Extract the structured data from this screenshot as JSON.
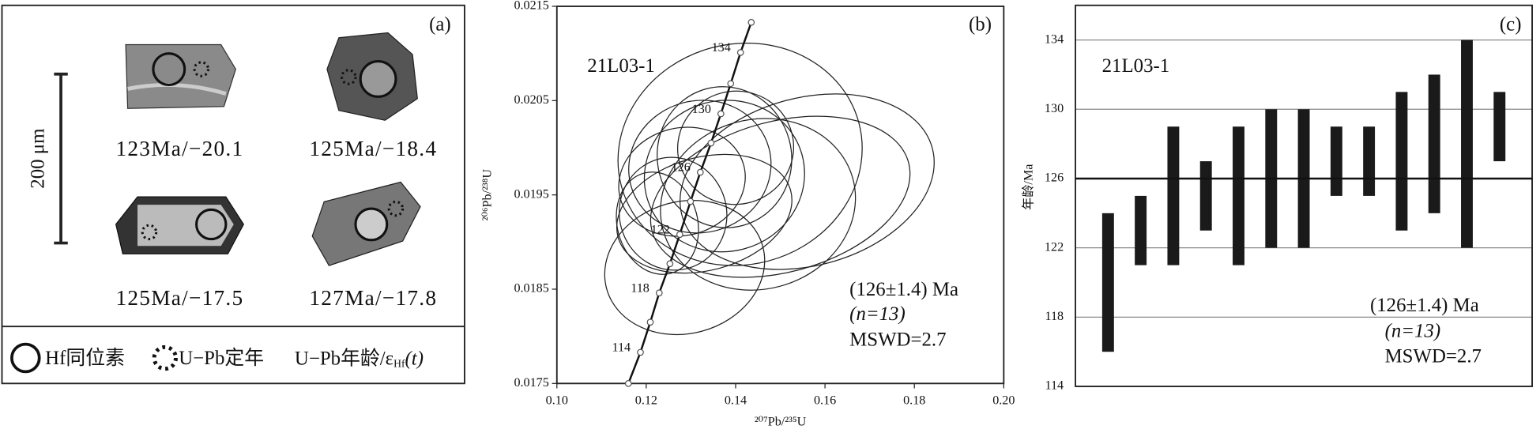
{
  "panel_a": {
    "label": "(a)",
    "scale": "200 μm",
    "grains": [
      "123Ma/−20.1",
      "125Ma/−18.4",
      "125Ma/−17.5",
      "127Ma/−17.8"
    ],
    "legend": {
      "hf": "Hf同位素",
      "upb": "U−Pb定年",
      "age": "U−Pb年龄/ε",
      "age_sub": "Hf",
      "age_tail": "(t)"
    }
  },
  "chart_data": [
    {
      "type": "concordia",
      "label": "(b)",
      "sample": "21L03-1",
      "result": "(126±1.4) Ma",
      "n_text": "(n=13)",
      "mswd": "MSWD=2.7",
      "x_label": "²⁰⁷Pb/²³⁵U",
      "y_label": "²⁰⁶Pb/²³⁸U",
      "xlim": [
        0.1,
        0.2
      ],
      "xticks": [
        {
          "value": 0.1,
          "label": "0.10"
        },
        {
          "value": 0.12,
          "label": "0.12"
        },
        {
          "value": 0.14,
          "label": "0.14"
        },
        {
          "value": 0.16,
          "label": "0.16"
        },
        {
          "value": 0.18,
          "label": "0.18"
        },
        {
          "value": 0.2,
          "label": "0.20"
        }
      ],
      "ylim": [
        0.0175,
        0.0215
      ],
      "yticks": [
        0.0175,
        0.0185,
        0.0195,
        0.0205,
        0.0215
      ],
      "curve": {
        "x": [
          0.116,
          0.1187,
          0.1209,
          0.1229,
          0.1253,
          0.1275,
          0.1299,
          0.1321,
          0.1345,
          0.1367,
          0.1389,
          0.1411,
          0.1435
        ],
        "y": [
          0.0175,
          0.01783,
          0.01815,
          0.01846,
          0.01877,
          0.01908,
          0.01943,
          0.01974,
          0.02005,
          0.02036,
          0.02068,
          0.02101,
          0.02133
        ],
        "ages": [
          null,
          114,
          null,
          118,
          null,
          122,
          null,
          126,
          null,
          130,
          null,
          134,
          null
        ]
      },
      "ellipses": [
        {
          "x": 0.141,
          "y": 0.01993,
          "sx": 0.0275,
          "sy": 0.00117
        },
        {
          "x": 0.156,
          "y": 0.01964,
          "sx": 0.029,
          "sy": 0.00089
        },
        {
          "x": 0.15,
          "y": 0.01948,
          "sx": 0.0297,
          "sy": 0.0008
        },
        {
          "x": 0.1286,
          "y": 0.01873,
          "sx": 0.0181,
          "sy": 0.0007
        },
        {
          "x": 0.128,
          "y": 0.01964,
          "sx": 0.0143,
          "sy": 0.00057
        },
        {
          "x": 0.1375,
          "y": 0.0197,
          "sx": 0.018,
          "sy": 0.0008
        },
        {
          "x": 0.132,
          "y": 0.0198,
          "sx": 0.016,
          "sy": 0.0007
        },
        {
          "x": 0.145,
          "y": 0.0194,
          "sx": 0.022,
          "sy": 0.0009
        },
        {
          "x": 0.126,
          "y": 0.0193,
          "sx": 0.012,
          "sy": 0.0006
        },
        {
          "x": 0.133,
          "y": 0.0193,
          "sx": 0.02,
          "sy": 0.0006
        },
        {
          "x": 0.14,
          "y": 0.02,
          "sx": 0.013,
          "sy": 0.0006
        },
        {
          "x": 0.1375,
          "y": 0.0199,
          "sx": 0.015,
          "sy": 0.00075
        },
        {
          "x": 0.1225,
          "y": 0.0192,
          "sx": 0.009,
          "sy": 0.00055
        }
      ]
    },
    {
      "type": "range-bar",
      "label": "(c)",
      "sample": "21L03-1",
      "result": "(126±1.4) Ma",
      "n_text": "(n=13)",
      "mswd": "MSWD=2.7",
      "y_label": "年龄/Ma",
      "color": "#1a1a1a",
      "values": [
        120,
        123,
        125,
        125,
        125,
        126,
        126,
        127,
        127,
        127,
        128,
        128,
        129
      ],
      "errors": [
        4,
        2,
        4,
        2,
        4,
        4,
        4,
        2,
        2,
        4,
        4,
        6,
        2
      ],
      "reference_line": 126,
      "ylim": [
        114,
        136
      ],
      "yticks": [
        114,
        118,
        122,
        126,
        130,
        134
      ],
      "grid": true
    }
  ]
}
